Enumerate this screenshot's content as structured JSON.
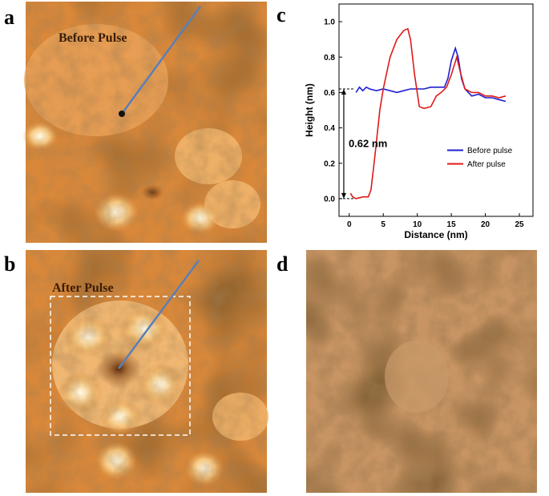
{
  "panels": {
    "a": {
      "label": "a",
      "caption": "Before Pulse"
    },
    "b": {
      "label": "b",
      "caption": "After Pulse"
    },
    "c": {
      "label": "c"
    },
    "d": {
      "label": "d"
    }
  },
  "chart_data": {
    "type": "line",
    "xlabel": "Distance (nm)",
    "ylabel": "Height (nm)",
    "xlim": [
      -1.5,
      27
    ],
    "xticks": [
      0,
      5,
      10,
      15,
      20,
      25
    ],
    "ylim": [
      -0.1,
      1.1
    ],
    "yticks": [
      {
        "value": 0,
        "label": "0.0"
      },
      0.2,
      0.4,
      0.6,
      0.8,
      {
        "value": 1,
        "label": "1.0"
      }
    ],
    "legend": "center right",
    "annotation": {
      "text": "0.62 nm",
      "x": -0.8,
      "from": 0,
      "to": 0.62
    },
    "series": [
      {
        "name": "Before pulse",
        "color": "#1f1fd0",
        "x": [
          1,
          1.5,
          2,
          2.5,
          3,
          4,
          5,
          6,
          7,
          8,
          9,
          10,
          11,
          12,
          13,
          14,
          14.5,
          15,
          15.6,
          16,
          16.5,
          17,
          18,
          19,
          20,
          21,
          22,
          23
        ],
        "values": [
          0.6,
          0.63,
          0.61,
          0.63,
          0.62,
          0.61,
          0.62,
          0.61,
          0.6,
          0.61,
          0.62,
          0.62,
          0.62,
          0.63,
          0.63,
          0.63,
          0.68,
          0.78,
          0.85,
          0.8,
          0.68,
          0.62,
          0.58,
          0.59,
          0.57,
          0.57,
          0.56,
          0.55
        ]
      },
      {
        "name": "After pulse",
        "color": "#e01818",
        "x": [
          0.2,
          0.5,
          1,
          2,
          2.8,
          3.2,
          3.8,
          4.5,
          5,
          6,
          7,
          8,
          8.6,
          9,
          9.6,
          10.3,
          11,
          12,
          12.8,
          13.5,
          14.3,
          15,
          15.8,
          16.3,
          17,
          18,
          19,
          20,
          21,
          22,
          23
        ],
        "values": [
          0.03,
          0.01,
          0,
          0.01,
          0.01,
          0.05,
          0.25,
          0.5,
          0.62,
          0.8,
          0.9,
          0.95,
          0.96,
          0.9,
          0.7,
          0.52,
          0.51,
          0.52,
          0.58,
          0.6,
          0.63,
          0.7,
          0.8,
          0.72,
          0.62,
          0.6,
          0.6,
          0.58,
          0.58,
          0.57,
          0.58
        ]
      }
    ]
  }
}
